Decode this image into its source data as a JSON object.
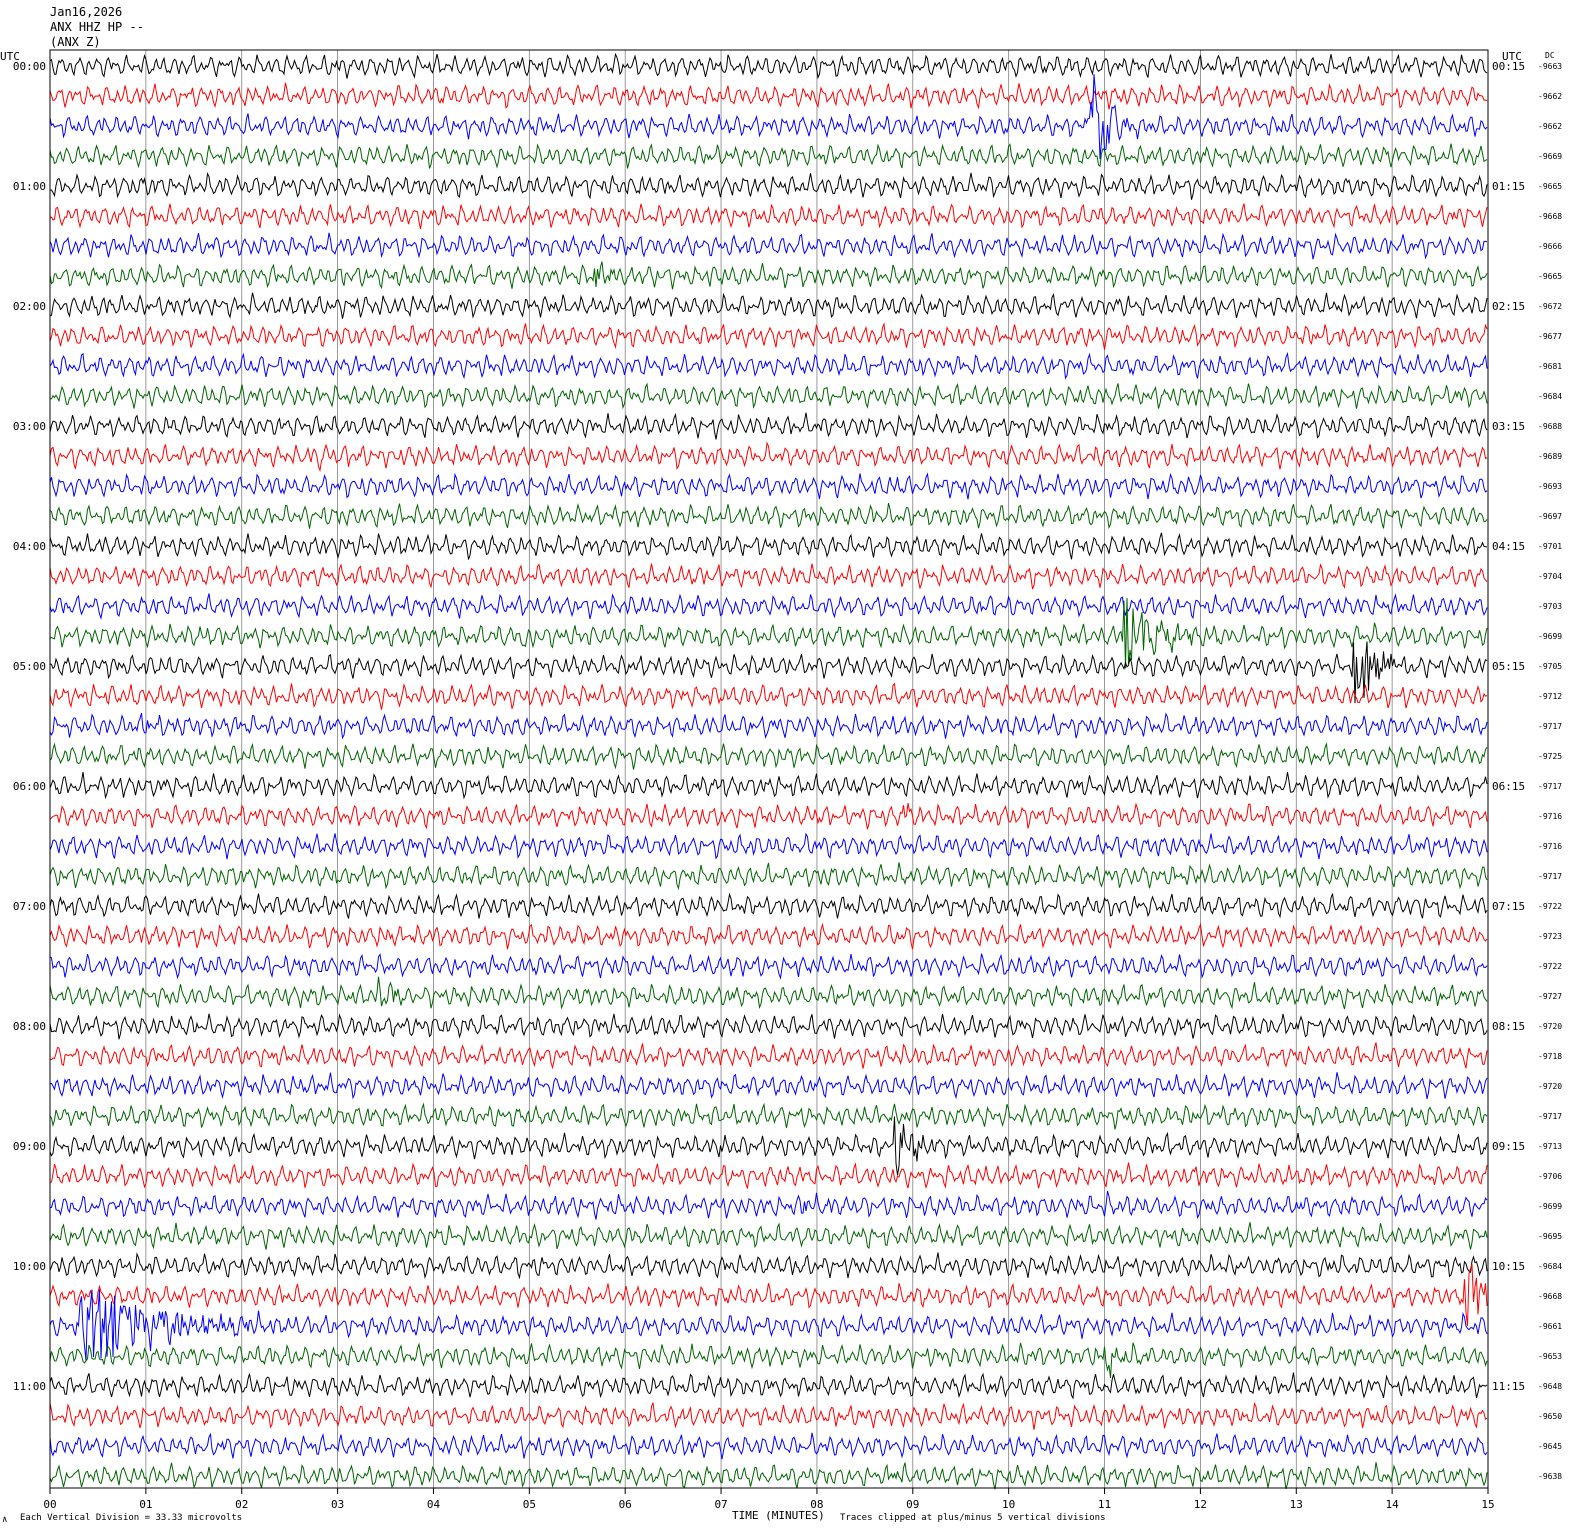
{
  "header": {
    "date": "Jan16,2026",
    "station": "ANX HHZ HP --",
    "component": "(ANX Z)"
  },
  "left_axis_title": "UTC",
  "right_axis_title": "UTC",
  "dc_title": "DC",
  "footer": {
    "scale_marker": "∧",
    "scale_note": "Each Vertical Division =   33.33 microvolts",
    "xlabel": "TIME (MINUTES)",
    "clip_note": "Traces clipped at plus/minus 5 vertical divisions"
  },
  "colors": {
    "trace_cycle": [
      "#000000",
      "#ff0000",
      "#0000ff",
      "#006400"
    ],
    "grid": "#808080",
    "frame": "#000000"
  },
  "chart_data": {
    "type": "line",
    "title": "ANX HHZ HP --",
    "xlabel": "TIME (MINUTES)",
    "xlim": [
      0,
      15
    ],
    "x_ticks": [
      "00",
      "01",
      "02",
      "03",
      "04",
      "05",
      "06",
      "07",
      "08",
      "09",
      "10",
      "11",
      "12",
      "13",
      "14",
      "15"
    ],
    "minutes_per_line": 15,
    "lines_per_hour": 4,
    "trace_count": 48,
    "left_time_labels": [
      "00:00",
      "01:00",
      "02:00",
      "03:00",
      "04:00",
      "05:00",
      "06:00",
      "07:00",
      "08:00",
      "09:00",
      "10:00",
      "11:00"
    ],
    "right_time_labels": [
      "00:15",
      "01:15",
      "02:15",
      "03:15",
      "04:15",
      "05:15",
      "06:15",
      "07:15",
      "08:15",
      "09:15",
      "10:15",
      "11:15"
    ],
    "dc_offsets": [
      "-9663",
      "-9662",
      "-9662",
      "-9669",
      "-9665",
      "-9668",
      "-9666",
      "-9665",
      "-9672",
      "-9677",
      "-9681",
      "-9684",
      "-9688",
      "-9689",
      "-9693",
      "-9697",
      "-9701",
      "-9704",
      "-9703",
      "-9699",
      "-9705",
      "-9712",
      "-9717",
      "-9725",
      "-9717",
      "-9716",
      "-9716",
      "-9717",
      "-9722",
      "-9723",
      "-9722",
      "-9727",
      "-9720",
      "-9718",
      "-9720",
      "-9717",
      "-9713",
      "-9706",
      "-9699",
      "-9695",
      "-9684",
      "-9668",
      "-9661",
      "-9653",
      "-9648",
      "-9650",
      "-9645",
      "-9638"
    ],
    "events": [
      {
        "trace": 2,
        "minute": 10.85,
        "amplitude": 6,
        "duration": 0.6
      },
      {
        "trace": 7,
        "minute": 5.68,
        "amplitude": 2.5,
        "duration": 0.25
      },
      {
        "trace": 13,
        "minute": 2.8,
        "amplitude": 1.2,
        "duration": 0.3
      },
      {
        "trace": 14,
        "minute": 9.5,
        "amplitude": 0.9,
        "duration": 0.4
      },
      {
        "trace": 19,
        "minute": 4.95,
        "amplitude": 1.3,
        "duration": 0.25
      },
      {
        "trace": 19,
        "minute": 6.95,
        "amplitude": 0.8,
        "duration": 0.3
      },
      {
        "trace": 19,
        "minute": 11.2,
        "amplitude": 5,
        "duration": 1.0
      },
      {
        "trace": 20,
        "minute": 13.6,
        "amplitude": 5,
        "duration": 0.7
      },
      {
        "trace": 22,
        "minute": 0.95,
        "amplitude": 1.2,
        "duration": 0.25
      },
      {
        "trace": 22,
        "minute": 7.85,
        "amplitude": 0.9,
        "duration": 0.15
      },
      {
        "trace": 25,
        "minute": 6.25,
        "amplitude": 0.9,
        "duration": 0.25
      },
      {
        "trace": 25,
        "minute": 8.9,
        "amplitude": 1.3,
        "duration": 0.3
      },
      {
        "trace": 31,
        "minute": 3.4,
        "amplitude": 1.2,
        "duration": 0.9
      },
      {
        "trace": 31,
        "minute": 7.8,
        "amplitude": 0.8,
        "duration": 0.2
      },
      {
        "trace": 36,
        "minute": 8.8,
        "amplitude": 3.2,
        "duration": 0.5
      },
      {
        "trace": 36,
        "minute": 7.0,
        "amplitude": 0.8,
        "duration": 0.3
      },
      {
        "trace": 38,
        "minute": 7.85,
        "amplitude": 0.8,
        "duration": 0.25
      },
      {
        "trace": 38,
        "minute": 11.0,
        "amplitude": 0.8,
        "duration": 0.2
      },
      {
        "trace": 42,
        "minute": 0.3,
        "amplitude": 5,
        "duration": 2.2
      },
      {
        "trace": 41,
        "minute": 14.75,
        "amplitude": 5,
        "duration": 0.45
      },
      {
        "trace": 43,
        "minute": 11.0,
        "amplitude": 1.5,
        "duration": 0.7
      },
      {
        "trace": 47,
        "minute": 8.75,
        "amplitude": 1.1,
        "duration": 0.3
      }
    ]
  }
}
